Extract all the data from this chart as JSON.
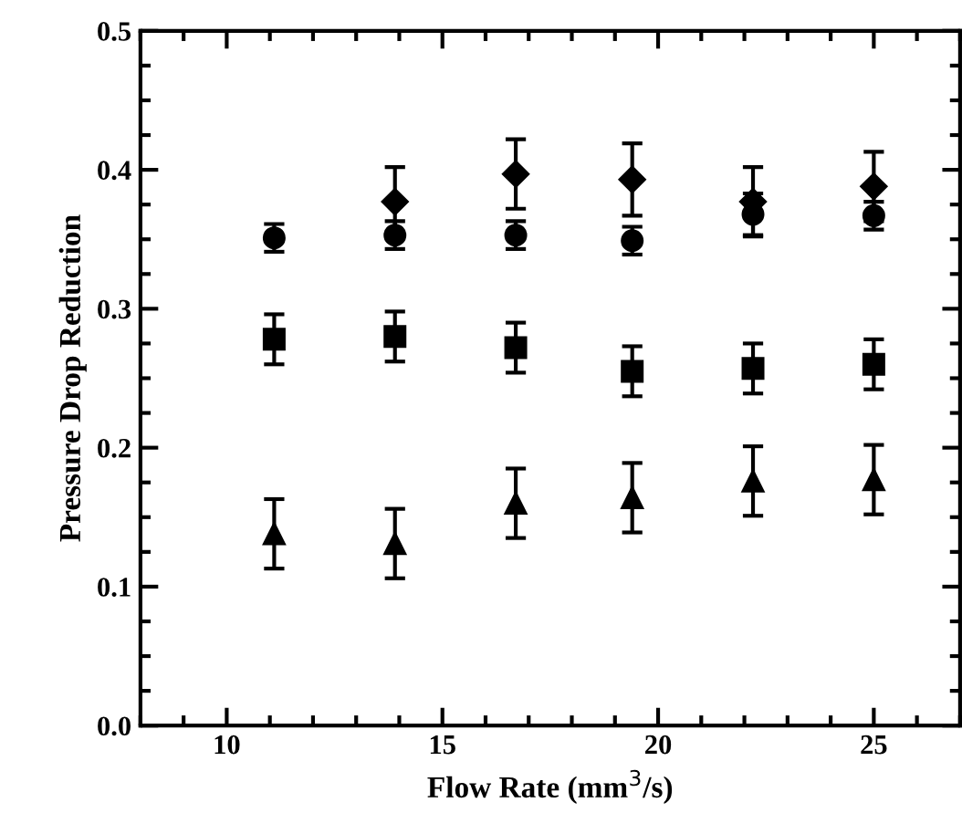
{
  "chart_data": {
    "type": "scatter",
    "xlabel": "Flow Rate (mm$^{3}$/s)",
    "ylabel": "Pressure Drop Reduction",
    "xlim": [
      8,
      27
    ],
    "xticks": [
      10,
      15,
      20,
      25
    ],
    "ylim": [
      0.0,
      0.5
    ],
    "yticks": [
      {
        "value": 0.0,
        "label": "0.0"
      },
      0.1,
      0.2,
      0.3,
      0.4,
      0.5
    ],
    "grid": false,
    "legend": false,
    "series": [
      {
        "color": "#000000",
        "marker": "diamond",
        "x": [
          13.9,
          16.7,
          19.4,
          22.2,
          25.0
        ],
        "values": [
          0.377,
          0.397,
          0.393,
          0.377,
          0.388
        ],
        "errors": [
          0.025,
          0.025,
          0.026,
          0.025,
          0.025
        ]
      },
      {
        "color": "#000000",
        "marker": "circle",
        "x": [
          11.1,
          13.9,
          16.7,
          19.4,
          22.2,
          25.0
        ],
        "values": [
          0.351,
          0.353,
          0.353,
          0.349,
          0.368,
          0.367
        ],
        "errors": [
          0.01,
          0.01,
          0.01,
          0.01,
          0.015,
          0.01
        ]
      },
      {
        "color": "#000000",
        "marker": "square",
        "x": [
          11.1,
          13.9,
          16.7,
          19.4,
          22.2,
          25.0
        ],
        "values": [
          0.278,
          0.28,
          0.272,
          0.255,
          0.257,
          0.26
        ],
        "errors": [
          0.018,
          0.018,
          0.018,
          0.018,
          0.018,
          0.018
        ]
      },
      {
        "color": "#000000",
        "marker": "triangle",
        "x": [
          11.1,
          13.9,
          16.7,
          19.4,
          22.2,
          25.0
        ],
        "values": [
          0.138,
          0.131,
          0.16,
          0.164,
          0.176,
          0.177
        ],
        "errors": [
          0.025,
          0.025,
          0.025,
          0.025,
          0.025,
          0.025
        ]
      }
    ]
  }
}
